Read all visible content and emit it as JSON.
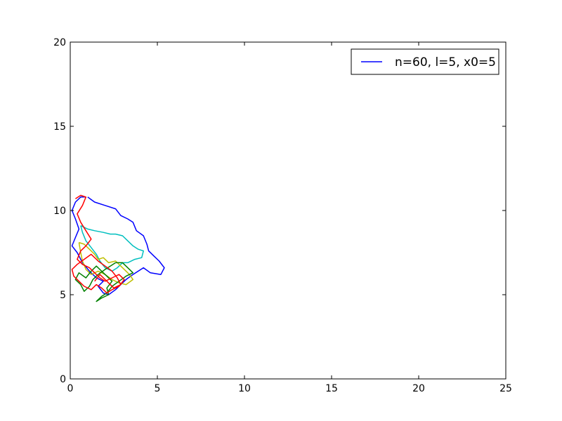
{
  "chart_data": {
    "type": "line",
    "title": "",
    "xlabel": "",
    "ylabel": "",
    "xlim": [
      0,
      25
    ],
    "ylim": [
      0,
      20
    ],
    "xticks": [
      0,
      5,
      10,
      15,
      20,
      25
    ],
    "yticks": [
      0,
      5,
      10,
      15,
      20
    ],
    "grid": false,
    "legend": {
      "placement": "top-right",
      "entries": [
        {
          "label": "n=60, l=5, x0=5",
          "color": "#0000ff"
        }
      ]
    },
    "series": [
      {
        "color": "#0000ff",
        "points": [
          [
            1.0,
            10.8
          ],
          [
            1.4,
            10.5
          ],
          [
            2.0,
            10.3
          ],
          [
            2.6,
            10.1
          ],
          [
            2.9,
            9.7
          ],
          [
            3.3,
            9.5
          ],
          [
            3.6,
            9.3
          ],
          [
            3.8,
            8.8
          ],
          [
            4.2,
            8.5
          ],
          [
            4.4,
            8.0
          ],
          [
            4.5,
            7.6
          ],
          [
            4.8,
            7.3
          ],
          [
            5.1,
            7.0
          ],
          [
            5.4,
            6.6
          ],
          [
            5.2,
            6.2
          ],
          [
            4.6,
            6.3
          ],
          [
            4.2,
            6.6
          ],
          [
            3.6,
            6.2
          ],
          [
            3.2,
            5.9
          ],
          [
            2.9,
            5.6
          ],
          [
            2.6,
            5.3
          ],
          [
            2.2,
            5.0
          ],
          [
            1.9,
            5.1
          ],
          [
            1.6,
            5.5
          ],
          [
            1.9,
            5.8
          ],
          [
            1.5,
            6.0
          ],
          [
            1.1,
            6.4
          ],
          [
            0.7,
            6.9
          ],
          [
            0.4,
            7.5
          ],
          [
            0.1,
            7.9
          ],
          [
            0.3,
            8.4
          ],
          [
            0.5,
            8.9
          ],
          [
            0.3,
            9.5
          ],
          [
            0.1,
            10.0
          ],
          [
            0.3,
            10.5
          ],
          [
            0.6,
            10.8
          ],
          [
            0.9,
            10.8
          ]
        ]
      },
      {
        "color": "#00bfbf",
        "points": [
          [
            0.6,
            9.1
          ],
          [
            1.0,
            8.9
          ],
          [
            1.4,
            8.8
          ],
          [
            1.9,
            8.7
          ],
          [
            2.3,
            8.6
          ],
          [
            2.6,
            8.6
          ],
          [
            3.0,
            8.5
          ],
          [
            3.3,
            8.2
          ],
          [
            3.6,
            7.9
          ],
          [
            3.9,
            7.7
          ],
          [
            4.2,
            7.6
          ],
          [
            4.1,
            7.2
          ],
          [
            3.7,
            7.1
          ],
          [
            3.3,
            6.9
          ],
          [
            3.0,
            6.9
          ],
          [
            2.7,
            6.6
          ],
          [
            2.4,
            6.4
          ],
          [
            2.0,
            6.6
          ],
          [
            1.7,
            7.0
          ],
          [
            1.5,
            7.4
          ],
          [
            1.2,
            7.8
          ],
          [
            0.9,
            8.2
          ],
          [
            0.7,
            8.7
          ],
          [
            0.6,
            9.1
          ]
        ]
      },
      {
        "color": "#bfbf00",
        "points": [
          [
            0.5,
            8.1
          ],
          [
            0.8,
            8.0
          ],
          [
            1.1,
            7.7
          ],
          [
            1.4,
            7.4
          ],
          [
            1.6,
            7.1
          ],
          [
            1.9,
            7.2
          ],
          [
            2.2,
            6.9
          ],
          [
            2.6,
            7.0
          ],
          [
            3.0,
            6.6
          ],
          [
            3.4,
            6.2
          ],
          [
            3.6,
            5.9
          ],
          [
            3.2,
            5.6
          ],
          [
            2.8,
            5.7
          ],
          [
            2.4,
            5.9
          ],
          [
            2.0,
            6.2
          ],
          [
            1.6,
            6.4
          ],
          [
            1.2,
            6.2
          ],
          [
            0.9,
            6.5
          ],
          [
            0.7,
            7.0
          ],
          [
            0.6,
            7.5
          ],
          [
            0.5,
            8.1
          ]
        ]
      },
      {
        "color": "#008000",
        "points": [
          [
            2.6,
            6.9
          ],
          [
            2.3,
            6.7
          ],
          [
            2.0,
            6.5
          ],
          [
            1.6,
            6.2
          ],
          [
            1.3,
            5.9
          ],
          [
            1.1,
            5.5
          ],
          [
            0.8,
            5.2
          ],
          [
            0.6,
            5.6
          ],
          [
            0.3,
            5.9
          ],
          [
            0.5,
            6.3
          ],
          [
            0.9,
            6.0
          ],
          [
            1.2,
            6.4
          ],
          [
            1.5,
            6.7
          ],
          [
            1.8,
            6.4
          ],
          [
            2.1,
            6.1
          ],
          [
            2.4,
            5.8
          ],
          [
            2.1,
            5.4
          ],
          [
            2.2,
            5.0
          ],
          [
            1.8,
            4.8
          ],
          [
            1.5,
            4.6
          ],
          [
            1.8,
            4.9
          ],
          [
            2.1,
            5.1
          ],
          [
            2.4,
            5.5
          ],
          [
            2.8,
            5.8
          ],
          [
            3.2,
            6.1
          ],
          [
            3.6,
            6.3
          ],
          [
            3.3,
            6.6
          ],
          [
            3.0,
            6.9
          ],
          [
            2.6,
            6.9
          ]
        ]
      },
      {
        "color": "#ff0000",
        "points": [
          [
            0.3,
            10.7
          ],
          [
            0.6,
            10.9
          ],
          [
            0.9,
            10.8
          ],
          [
            0.7,
            10.3
          ],
          [
            0.4,
            9.8
          ],
          [
            0.6,
            9.3
          ],
          [
            0.9,
            8.8
          ],
          [
            1.2,
            8.3
          ],
          [
            0.9,
            7.9
          ],
          [
            0.6,
            7.6
          ],
          [
            0.4,
            7.1
          ],
          [
            0.7,
            6.8
          ],
          [
            1.1,
            6.6
          ],
          [
            1.4,
            6.3
          ],
          [
            1.7,
            6.0
          ],
          [
            2.0,
            5.8
          ],
          [
            2.4,
            6.0
          ],
          [
            2.8,
            6.2
          ],
          [
            3.1,
            5.9
          ],
          [
            2.8,
            5.5
          ],
          [
            2.4,
            5.3
          ],
          [
            2.1,
            5.1
          ],
          [
            1.8,
            5.4
          ],
          [
            1.5,
            5.6
          ],
          [
            1.2,
            5.3
          ],
          [
            0.8,
            5.5
          ],
          [
            0.5,
            5.8
          ],
          [
            0.2,
            6.1
          ],
          [
            0.1,
            6.5
          ],
          [
            0.4,
            6.8
          ],
          [
            0.8,
            7.1
          ],
          [
            1.2,
            7.4
          ],
          [
            1.6,
            7.0
          ],
          [
            2.0,
            6.7
          ],
          [
            2.4,
            6.4
          ],
          [
            2.7,
            6.0
          ],
          [
            2.9,
            5.6
          ],
          [
            2.5,
            5.4
          ],
          [
            2.1,
            5.8
          ],
          [
            1.7,
            6.2
          ],
          [
            1.4,
            5.8
          ]
        ]
      }
    ]
  }
}
